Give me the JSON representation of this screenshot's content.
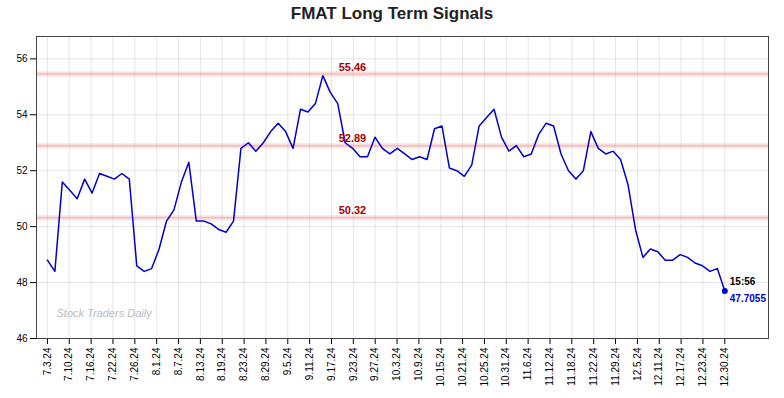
{
  "chart_data": {
    "type": "line",
    "title": "FMAT Long Term Signals",
    "color": "#0000cc",
    "grid": true,
    "x": [
      0,
      0.3407,
      0.6813,
      1.022,
      1.3626,
      1.7033,
      2.044,
      2.3846,
      2.7253,
      3.0659,
      3.4066,
      3.7473,
      4.0879,
      4.4286,
      4.7692,
      5.1099,
      5.4505,
      5.7912,
      6.1319,
      6.4725,
      6.8132,
      7.1538,
      7.4945,
      7.8352,
      8.1758,
      8.5165,
      8.8571,
      9.1978,
      9.5385,
      9.8791,
      10.2198,
      10.5604,
      10.9011,
      11.2418,
      11.5824,
      11.9231,
      12.2637,
      12.6044,
      12.9451,
      13.2857,
      13.6264,
      13.967,
      14.3077,
      14.6484,
      14.989,
      15.3297,
      15.6703,
      16.011,
      16.3516,
      16.6923,
      17.033,
      17.3736,
      17.7143,
      18.0549,
      18.3956,
      18.7363,
      19.0769,
      19.4176,
      19.7582,
      20.0989,
      20.4396,
      20.7802,
      21.1209,
      21.4615,
      21.8022,
      22.1429,
      22.4835,
      22.8242,
      23.1648,
      23.5055,
      23.8462,
      24.1868,
      24.5275,
      24.8681,
      25.2088,
      25.5495,
      25.8901,
      26.2308,
      26.5714,
      26.9121,
      27.2527,
      27.5934,
      27.9341,
      28.2747,
      28.6154,
      28.956,
      29.2967,
      29.6374,
      29.978,
      30.3187,
      30.6593,
      31
    ],
    "values": [
      48.8,
      48.4,
      51.6,
      51.3,
      51.0,
      51.7,
      51.2,
      51.9,
      51.8,
      51.7,
      51.9,
      51.7,
      48.6,
      48.4,
      48.5,
      49.2,
      50.2,
      50.6,
      51.6,
      52.3,
      50.2,
      50.2,
      50.1,
      49.9,
      49.8,
      50.2,
      52.8,
      53.0,
      52.7,
      53.0,
      53.4,
      53.7,
      53.4,
      52.8,
      54.2,
      54.1,
      54.4,
      55.4,
      54.8,
      54.4,
      53.0,
      52.8,
      52.5,
      52.5,
      53.2,
      52.8,
      52.6,
      52.8,
      52.6,
      52.4,
      52.5,
      52.4,
      53.5,
      53.6,
      52.1,
      52.0,
      51.8,
      52.2,
      53.6,
      53.9,
      54.2,
      53.2,
      52.7,
      52.9,
      52.5,
      52.6,
      53.3,
      53.7,
      53.6,
      52.6,
      52.0,
      51.7,
      52.0,
      53.4,
      52.8,
      52.6,
      52.7,
      52.4,
      51.5,
      49.9,
      48.9,
      49.2,
      49.1,
      48.8,
      48.8,
      49.0,
      48.9,
      48.7,
      48.6,
      48.4,
      48.5,
      47.7
    ],
    "xlim": [
      -0.5,
      33.0
    ],
    "xticks": [
      {
        "value": 0,
        "label": "7.3.24"
      },
      {
        "value": 1,
        "label": "7.10.24"
      },
      {
        "value": 2,
        "label": "7.16.24"
      },
      {
        "value": 3,
        "label": "7.22.24"
      },
      {
        "value": 4,
        "label": "7.26.24"
      },
      {
        "value": 5,
        "label": "8.1.24"
      },
      {
        "value": 6,
        "label": "8.7.24"
      },
      {
        "value": 7,
        "label": "8.13.24"
      },
      {
        "value": 8,
        "label": "8.19.24"
      },
      {
        "value": 9,
        "label": "8.23.24"
      },
      {
        "value": 10,
        "label": "8.29.24"
      },
      {
        "value": 11,
        "label": "9.5.24"
      },
      {
        "value": 12,
        "label": "9.11.24"
      },
      {
        "value": 13,
        "label": "9.17.24"
      },
      {
        "value": 14,
        "label": "9.23.24"
      },
      {
        "value": 15,
        "label": "9.27.24"
      },
      {
        "value": 16,
        "label": "10.3.24"
      },
      {
        "value": 17,
        "label": "10.9.24"
      },
      {
        "value": 18,
        "label": "10.15.24"
      },
      {
        "value": 19,
        "label": "10.21.24"
      },
      {
        "value": 20,
        "label": "10.25.24"
      },
      {
        "value": 21,
        "label": "10.31.24"
      },
      {
        "value": 22,
        "label": "11.6.24"
      },
      {
        "value": 23,
        "label": "11.12.24"
      },
      {
        "value": 24,
        "label": "11.18.24"
      },
      {
        "value": 25,
        "label": "11.22.24"
      },
      {
        "value": 26,
        "label": "11.29.24"
      },
      {
        "value": 27,
        "label": "12.5.24"
      },
      {
        "value": 28,
        "label": "12.11.24"
      },
      {
        "value": 29,
        "label": "12.17.24"
      },
      {
        "value": 30,
        "label": "12.23.24"
      },
      {
        "value": 31,
        "label": "12.30.24"
      }
    ],
    "ylim": [
      46.0,
      56.8
    ],
    "yticks": [
      46,
      48,
      50,
      52,
      54,
      56
    ],
    "reference_lines": [
      {
        "value": 55.46,
        "label": "55.46",
        "color": "#f5a0a0",
        "label_color": "#aa0000"
      },
      {
        "value": 52.89,
        "label": "52.89",
        "color": "#f5a0a0",
        "label_color": "#aa0000"
      },
      {
        "value": 50.32,
        "label": "50.32",
        "color": "#f5a0a0",
        "label_color": "#aa0000"
      }
    ],
    "annotations": [
      {
        "x": 31,
        "y": 47.7,
        "text": "15:56",
        "color": "#000000",
        "marker": "circle"
      },
      {
        "x": 31,
        "y": 47.7,
        "text": "47.7055",
        "color": "#0000cc"
      }
    ],
    "watermark": {
      "text": "Stock Traders Daily",
      "color": "#bbbbbb"
    }
  }
}
